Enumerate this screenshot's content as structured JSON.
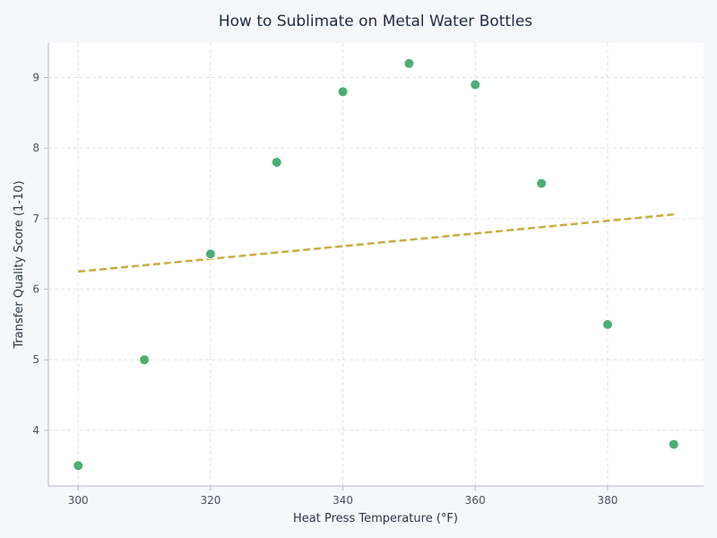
{
  "chart_data": {
    "type": "scatter",
    "title": "How to Sublimate on Metal Water Bottles",
    "xlabel": "Heat Press Temperature (°F)",
    "ylabel": "Transfer Quality Score (1-10)",
    "xlim": [
      295.5,
      394.5
    ],
    "ylim": [
      3.21,
      9.49
    ],
    "x_ticks": [
      300,
      320,
      340,
      360,
      380
    ],
    "y_ticks": [
      4,
      5,
      6,
      7,
      8,
      9
    ],
    "grid": true,
    "points": [
      {
        "x": 300,
        "y": 3.5
      },
      {
        "x": 310,
        "y": 5.0
      },
      {
        "x": 320,
        "y": 6.5
      },
      {
        "x": 330,
        "y": 7.8
      },
      {
        "x": 340,
        "y": 8.8
      },
      {
        "x": 350,
        "y": 9.2
      },
      {
        "x": 360,
        "y": 8.9
      },
      {
        "x": 370,
        "y": 7.5
      },
      {
        "x": 380,
        "y": 5.5
      },
      {
        "x": 390,
        "y": 3.8
      }
    ],
    "trendline": {
      "style": "dashed",
      "x_start": 300,
      "y_start": 6.25,
      "x_end": 390,
      "y_end": 7.06
    },
    "colors": {
      "point": "#4cae74",
      "point_edge": "#ffffff",
      "trendline": "#c9ad3e",
      "grid": "#dcdcdc",
      "axis": "#b5b8c2",
      "plot_bg": "#ffffff",
      "page_bg": "#f5f7fb"
    }
  }
}
